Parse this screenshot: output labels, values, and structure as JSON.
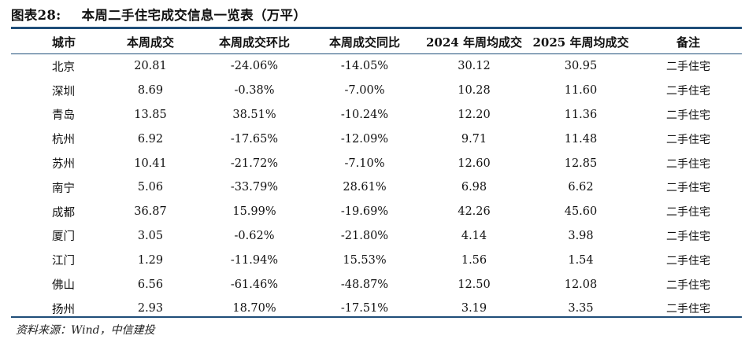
{
  "title": {
    "label": "图表28:",
    "text": "本周二手住宅成交信息一览表（万平）"
  },
  "table": {
    "headers": [
      "城市",
      "本周成交",
      "本周成交环比",
      "本周成交同比",
      "2024 年周均成交",
      "2025 年周均成交",
      "备注"
    ],
    "rows": [
      [
        "北京",
        "20.81",
        "-24.06%",
        "-14.05%",
        "30.12",
        "30.95",
        "二手住宅"
      ],
      [
        "深圳",
        "8.69",
        "-0.38%",
        "-7.00%",
        "10.28",
        "11.60",
        "二手住宅"
      ],
      [
        "青岛",
        "13.85",
        "38.51%",
        "-10.24%",
        "12.20",
        "11.36",
        "二手住宅"
      ],
      [
        "杭州",
        "6.92",
        "-17.65%",
        "-12.09%",
        "9.71",
        "11.48",
        "二手住宅"
      ],
      [
        "苏州",
        "10.41",
        "-21.72%",
        "-7.10%",
        "12.60",
        "12.85",
        "二手住宅"
      ],
      [
        "南宁",
        "5.06",
        "-33.79%",
        "28.61%",
        "6.98",
        "6.62",
        "二手住宅"
      ],
      [
        "成都",
        "36.87",
        "15.99%",
        "-19.69%",
        "42.26",
        "45.60",
        "二手住宅"
      ],
      [
        "厦门",
        "3.05",
        "-0.62%",
        "-21.80%",
        "4.14",
        "3.98",
        "二手住宅"
      ],
      [
        "江门",
        "1.29",
        "-11.94%",
        "15.53%",
        "1.56",
        "1.54",
        "二手住宅"
      ],
      [
        "佛山",
        "6.56",
        "-61.46%",
        "-48.87%",
        "12.50",
        "12.08",
        "二手住宅"
      ],
      [
        "扬州",
        "2.93",
        "18.70%",
        "-17.51%",
        "3.19",
        "3.35",
        "二手住宅"
      ]
    ]
  },
  "source": "资料来源：Wind，中信建投",
  "colors": {
    "rule": "#1f4e79"
  }
}
